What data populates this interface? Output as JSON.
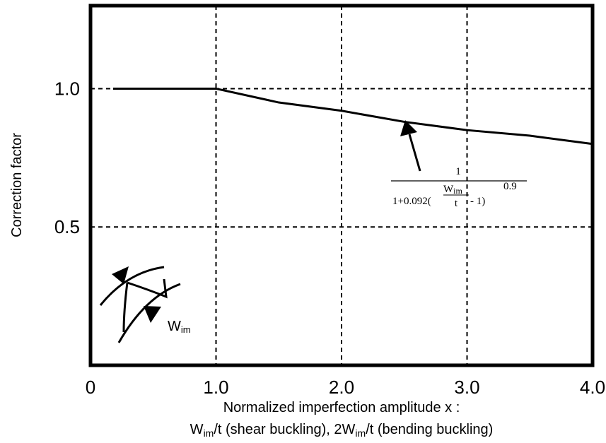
{
  "chart_data": {
    "type": "line",
    "ylabel": "Correction factor",
    "xlabel": {
      "line1": "Normalized imperfection amplitude x :",
      "line2": [
        {
          "text": "W",
          "sub": "im"
        },
        {
          "text": "/t (shear buckling), 2W",
          "sub": "im"
        },
        {
          "text": "/t (bending buckling)"
        }
      ]
    },
    "x": [
      0.18,
      0.5,
      1.0,
      1.5,
      2.0,
      2.5,
      3.0,
      3.5,
      4.0
    ],
    "values": [
      1.0,
      1.0,
      1.0,
      0.95,
      0.92,
      0.88,
      0.85,
      0.83,
      0.8
    ],
    "color": "#000000",
    "xlim": [
      0,
      4.0
    ],
    "ylim": [
      0,
      1.3
    ],
    "xticks": [
      0,
      {
        "value": 1.0,
        "label": "1.0"
      },
      {
        "value": 2.0,
        "label": "2.0"
      },
      {
        "value": 3.0,
        "label": "3.0"
      },
      {
        "value": 4.0,
        "label": "4.0"
      }
    ],
    "yticks": [
      {
        "value": 0.5,
        "label": "0.5"
      },
      {
        "value": 1.0,
        "label": "1.0"
      }
    ],
    "grid": true,
    "annotation": {
      "numerator": "1",
      "prefix": "1+0.092(",
      "frac_top": "W",
      "frac_top_sub": "im",
      "frac_bottom": "t",
      "suffix": " - 1)",
      "exponent": "0.9"
    },
    "inset_label": {
      "text": "W",
      "sub": "im"
    }
  }
}
